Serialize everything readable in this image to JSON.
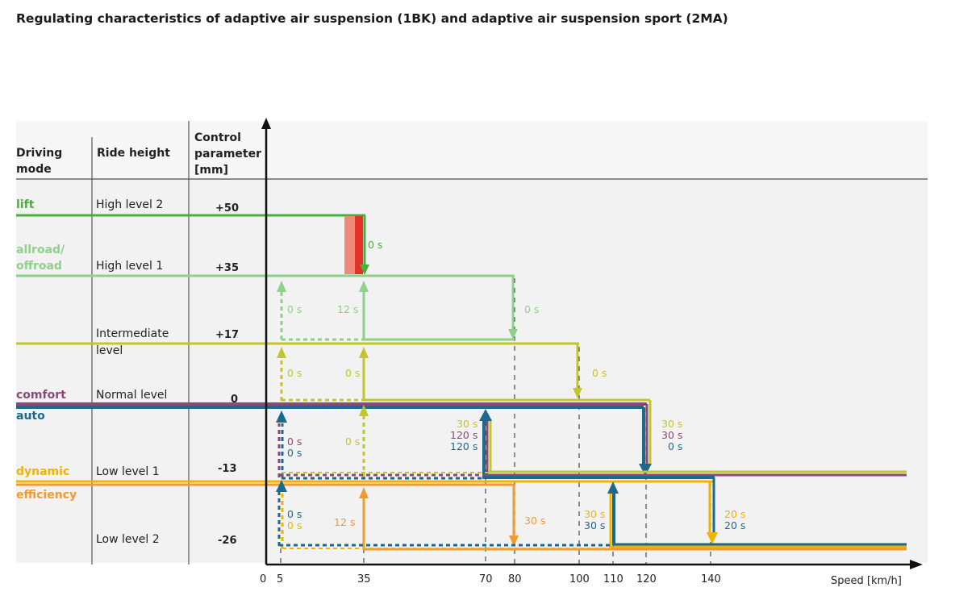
{
  "title": "Regulating characteristics of adaptive air suspension (1BK) and adaptive air suspension sport (2MA)",
  "headers": {
    "driving_mode": [
      "Driving",
      "mode"
    ],
    "ride_height": "Ride height",
    "control_parameter": [
      "Control",
      "parameter",
      "[mm]"
    ]
  },
  "rows": [
    {
      "modes": [
        "lift"
      ],
      "ride_height": [
        "High level 2"
      ],
      "param": "+50"
    },
    {
      "modes": [
        "allroad/",
        "offroad"
      ],
      "ride_height": [
        "High level 1"
      ],
      "param": "+35"
    },
    {
      "modes": [],
      "ride_height": [
        "Intermediate",
        "level"
      ],
      "param": "+17"
    },
    {
      "modes": [
        "comfort",
        "auto"
      ],
      "ride_height": [
        "Normal level"
      ],
      "param": "0"
    },
    {
      "modes": [
        "dynamic",
        "efficiency"
      ],
      "ride_height": [
        "Low level 1"
      ],
      "param": "-13"
    },
    {
      "modes": [],
      "ride_height": [
        "Low level 2"
      ],
      "param": "-26"
    }
  ],
  "colors": {
    "lift": "#4caf3c",
    "allroad": "#8fd08a",
    "intermediate": "#c3c52c",
    "comfort": "#8a4a78",
    "auto": "#1b6a8e",
    "dynamic": "#f0b400",
    "efficiency": "#f29a2e",
    "red_bar": "#e23126",
    "salmon_bar": "#f08a78"
  },
  "x_axis": {
    "label": "Speed [km/h]",
    "ticks": [
      "0",
      "5",
      "35",
      "70",
      "80",
      "100",
      "110",
      "120",
      "140"
    ]
  },
  "time_labels": {
    "lift_down": "0 s",
    "allroad_up_5": "0 s",
    "allroad_up_35": "12 s",
    "allroad_down_80": "0 s",
    "inter_up_5": "0 s",
    "inter_up_35": "0 s",
    "inter_down_100": "0 s",
    "normal_up_5_comfort": "0 s",
    "normal_up_5_auto": "0 s",
    "normal_up_35": "0 s",
    "normal_up_70_a": "30 s",
    "normal_up_70_b": "120 s",
    "normal_up_70_c": "120 s",
    "normal_down_120_a": "30 s",
    "normal_down_120_b": "30 s",
    "normal_down_120_c": "0 s",
    "low1_up_5_auto": "0 s",
    "low1_up_5_dyn": "0 s",
    "low1_up_35": "12 s",
    "low1_down_80": "30 s",
    "low1_up_110_a": "30 s",
    "low1_up_110_b": "30 s",
    "low1_down_140_a": "20 s",
    "low1_down_140_b": "20 s"
  }
}
